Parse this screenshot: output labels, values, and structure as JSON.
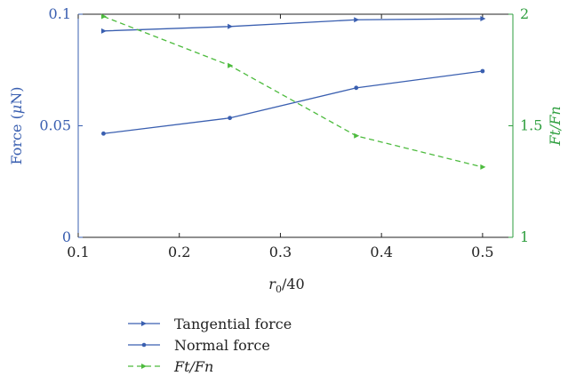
{
  "chart_data": {
    "type": "line",
    "x": [
      0.125,
      0.25,
      0.375,
      0.5
    ],
    "xlim": [
      0.1,
      0.53
    ],
    "xticks": [
      "0.1",
      "0.2",
      "0.3",
      "0.4",
      "0.5"
    ],
    "xtick_values": [
      0.1,
      0.2,
      0.3,
      0.4,
      0.5
    ],
    "xlabel_base": "r",
    "xlabel_sub": "0",
    "xlabel_tail": "/40",
    "ylabel_left_text": "Force (",
    "ylabel_left_mu": "μ",
    "ylabel_left_tail": "N)",
    "ylim_left": [
      0,
      0.1
    ],
    "yticks_left": [
      "0",
      "0.05",
      "0.1"
    ],
    "ytick_values_left": [
      0,
      0.05,
      0.1
    ],
    "ylabel_right": "Ft/Fn",
    "ylim_right": [
      1,
      2
    ],
    "yticks_right": [
      "1",
      "1.5",
      "2"
    ],
    "ytick_values_right": [
      1,
      1.5,
      2
    ],
    "legend_position": "bottom",
    "series": [
      {
        "name": "Tangential force",
        "axis": "left",
        "values": [
          0.0925,
          0.0945,
          0.0975,
          0.098
        ],
        "color": "#3a5fb0",
        "marker": "triangle",
        "dash": "none"
      },
      {
        "name": "Normal force",
        "axis": "left",
        "values": [
          0.0465,
          0.0535,
          0.067,
          0.0745
        ],
        "color": "#3a5fb0",
        "marker": "circle",
        "dash": "none"
      },
      {
        "name": "Ft/Fn",
        "axis": "right",
        "values": [
          1.99,
          1.77,
          1.455,
          1.315
        ],
        "color": "#4dbb3e",
        "marker": "triangle",
        "dash": "6,4"
      }
    ]
  }
}
